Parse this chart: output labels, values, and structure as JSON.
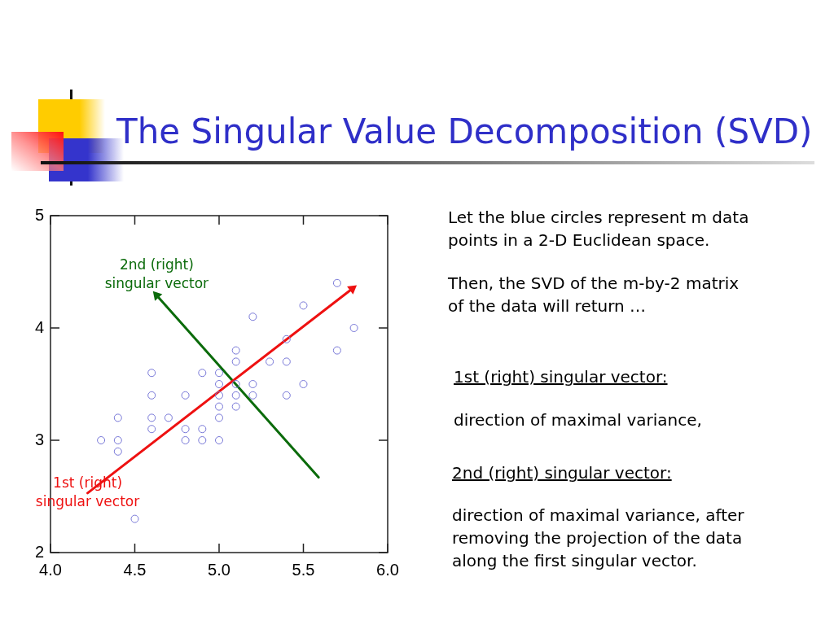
{
  "chart_data": {
    "type": "scatter",
    "title": "The Singular Value Decomposition (SVD)",
    "xlim": [
      4,
      6
    ],
    "ylim": [
      2,
      5
    ],
    "xticks": [
      {
        "value": 4,
        "label": "4.0"
      },
      {
        "value": 4.5,
        "label": "4.5"
      },
      {
        "value": 5,
        "label": "5.0"
      },
      {
        "value": 5.5,
        "label": "5.5"
      },
      {
        "value": 6,
        "label": "6.0"
      }
    ],
    "yticks": [
      2,
      3,
      4,
      5
    ],
    "marker": "circle",
    "series": [
      {
        "type": "scatter",
        "color": "#7878d8",
        "x": [
          4.3,
          4.4,
          4.4,
          4.4,
          4.5,
          4.6,
          4.6,
          4.6,
          4.6,
          4.7,
          4.8,
          4.8,
          4.8,
          4.9,
          4.9,
          4.9,
          5.0,
          5.0,
          5.0,
          5.0,
          5.0,
          5.0,
          5.1,
          5.1,
          5.1,
          5.1,
          5.1,
          5.2,
          5.2,
          5.2,
          5.3,
          5.4,
          5.4,
          5.4,
          5.5,
          5.5,
          5.7,
          5.7,
          5.8
        ],
        "values": [
          3.0,
          2.9,
          3.0,
          3.2,
          2.3,
          3.1,
          3.2,
          3.4,
          3.6,
          3.2,
          3.0,
          3.1,
          3.4,
          3.0,
          3.1,
          3.6,
          3.0,
          3.2,
          3.3,
          3.4,
          3.5,
          3.6,
          3.3,
          3.4,
          3.5,
          3.7,
          3.8,
          3.4,
          3.5,
          4.1,
          3.7,
          3.4,
          3.7,
          3.9,
          3.5,
          4.2,
          3.8,
          4.4,
          4.0
        ]
      },
      {
        "type": "line",
        "marker": "triangle",
        "color": "#ee1111",
        "x": [
          4.22,
          5.79
        ],
        "values": [
          2.53,
          4.35
        ]
      },
      {
        "type": "line",
        "marker": "triangle",
        "color": "#0b6b0b",
        "x": [
          5.59,
          4.63
        ],
        "values": [
          2.67,
          4.29
        ]
      }
    ],
    "annotations": [
      {
        "text": "2nd (right) singular vector",
        "x": 4.63,
        "y": 4.29
      },
      {
        "text": "1st (right) singular vector",
        "x": 4.22,
        "y": 2.53
      },
      "Let the blue circles represent m data points in a 2-D Euclidean space.",
      "Then, the SVD of the m-by-2 matrix of the data will return …",
      "1st (right) singular vector:",
      "direction of maximal variance,",
      "2nd (right) singular vector:",
      "direction of maximal variance, after removing the projection of the data along the first singular vector."
    ]
  }
}
